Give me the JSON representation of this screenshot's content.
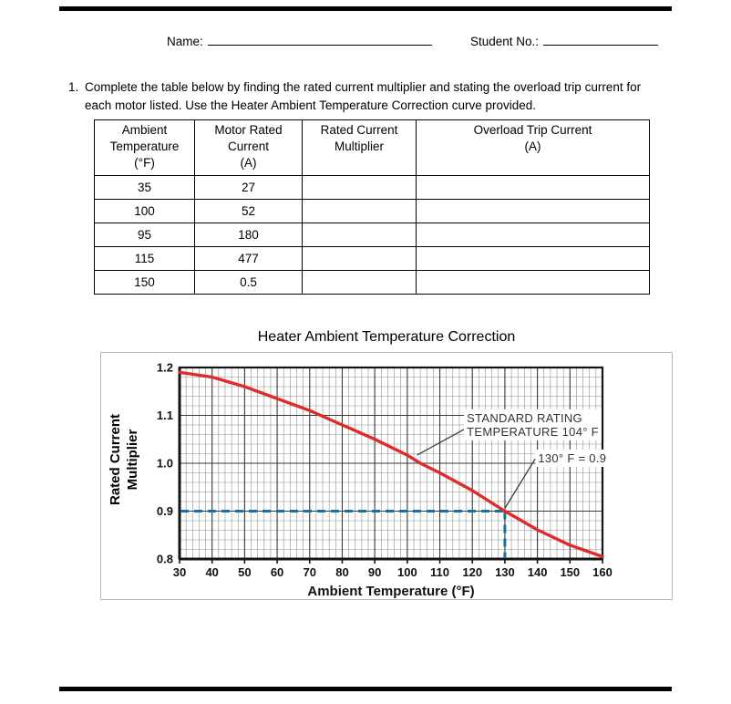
{
  "header": {
    "name_label": "Name:",
    "student_no_label": "Student No.:"
  },
  "question": {
    "number": "1.",
    "text": "Complete the table below by finding the rated current multiplier and stating the overload trip current for each motor listed.  Use the Heater Ambient Temperature Correction curve provided."
  },
  "table": {
    "headers": [
      "Ambient\nTemperature\n(°F)",
      "Motor Rated\nCurrent\n(A)",
      "Rated Current\nMultiplier",
      "Overload Trip Current\n(A)"
    ],
    "rows": [
      [
        "35",
        "27",
        "",
        ""
      ],
      [
        "100",
        "52",
        "",
        ""
      ],
      [
        "95",
        "180",
        "",
        ""
      ],
      [
        "115",
        "477",
        "",
        ""
      ],
      [
        "150",
        "0.5",
        "",
        ""
      ]
    ]
  },
  "chart_data": {
    "type": "line",
    "title": "Heater Ambient Temperature Correction",
    "xlabel": "Ambient Temperature (°F)",
    "ylabel": "Rated Current Multiplier",
    "xlim": [
      30,
      160
    ],
    "ylim": [
      0.8,
      1.2
    ],
    "x_ticks": [
      30,
      40,
      50,
      60,
      70,
      80,
      90,
      100,
      110,
      120,
      130,
      140,
      150,
      160
    ],
    "y_ticks": [
      "1.2",
      "1.1",
      "1.0",
      "0.9",
      "0.8"
    ],
    "x_minor_step": 2,
    "y_minor_step": 0.02,
    "grid": true,
    "legend": false,
    "series": [
      {
        "name": "rated-current-multiplier-curve",
        "color": "#e02b2b",
        "x": [
          30,
          40,
          50,
          60,
          70,
          80,
          90,
          100,
          104,
          110,
          120,
          130,
          140,
          150,
          160
        ],
        "y": [
          1.19,
          1.18,
          1.16,
          1.135,
          1.11,
          1.08,
          1.05,
          1.017,
          1.0,
          0.98,
          0.943,
          0.9,
          0.861,
          0.829,
          0.805
        ]
      }
    ],
    "reference_lines": {
      "x": 130,
      "y": 0.9,
      "color": "#1471a8"
    },
    "annotations": [
      {
        "lines": [
          "STANDARD RATING",
          "TEMPERATURE 104° F"
        ],
        "text_x": 118.3,
        "text_y": 1.086,
        "point_x": 103,
        "point_y": 1.017
      },
      {
        "lines": [
          "130° F = 0.9"
        ],
        "text_x": 140.2,
        "text_y": 1.002,
        "point_x": 130,
        "point_y": 0.906
      }
    ]
  }
}
